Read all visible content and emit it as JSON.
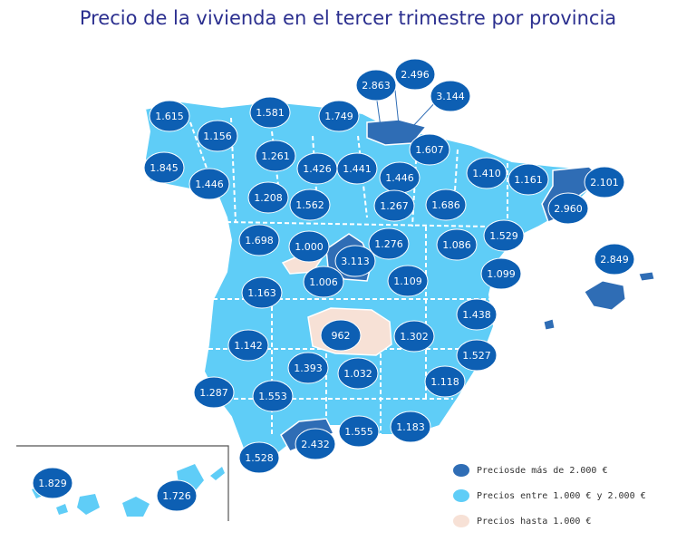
{
  "title": "Precio de la vivienda en el tercer trimestre por provincia",
  "colors": {
    "high": "#2f6db5",
    "mid": "#5fcdf7",
    "low": "#f7e1d6",
    "bubble": "#0d5fb3",
    "border": "#ffffff"
  },
  "legend": [
    {
      "key": "high",
      "label": "Preciosde más de 2.000 €"
    },
    {
      "key": "mid",
      "label": "Precios entre 1.000 € y 2.000 €"
    },
    {
      "key": "low",
      "label": "Precios hasta 1.000 €"
    }
  ],
  "provinces": [
    {
      "value": "1.615"
    },
    {
      "value": "1.581"
    },
    {
      "value": "1.749"
    },
    {
      "value": "2.863"
    },
    {
      "value": "2.496"
    },
    {
      "value": "3.144"
    },
    {
      "value": "1.156"
    },
    {
      "value": "1.845"
    },
    {
      "value": "1.446"
    },
    {
      "value": "1.261"
    },
    {
      "value": "1.426"
    },
    {
      "value": "1.441"
    },
    {
      "value": "1.607"
    },
    {
      "value": "1.446"
    },
    {
      "value": "1.410"
    },
    {
      "value": "1.161"
    },
    {
      "value": "2.101"
    },
    {
      "value": "1.208"
    },
    {
      "value": "1.562"
    },
    {
      "value": "1.267"
    },
    {
      "value": "1.686"
    },
    {
      "value": "2.960"
    },
    {
      "value": "1.698"
    },
    {
      "value": "1.000"
    },
    {
      "value": "3.113"
    },
    {
      "value": "1.276"
    },
    {
      "value": "1.086"
    },
    {
      "value": "1.529"
    },
    {
      "value": "2.849"
    },
    {
      "value": "1.006"
    },
    {
      "value": "1.163"
    },
    {
      "value": "1.109"
    },
    {
      "value": "1.099"
    },
    {
      "value": "962"
    },
    {
      "value": "1.302"
    },
    {
      "value": "1.438"
    },
    {
      "value": "1.142"
    },
    {
      "value": "1.393"
    },
    {
      "value": "1.032"
    },
    {
      "value": "1.527"
    },
    {
      "value": "1.287"
    },
    {
      "value": "1.553"
    },
    {
      "value": "1.118"
    },
    {
      "value": "2.432"
    },
    {
      "value": "1.555"
    },
    {
      "value": "1.183"
    },
    {
      "value": "1.528"
    },
    {
      "value": "1.829"
    },
    {
      "value": "1.726"
    }
  ]
}
